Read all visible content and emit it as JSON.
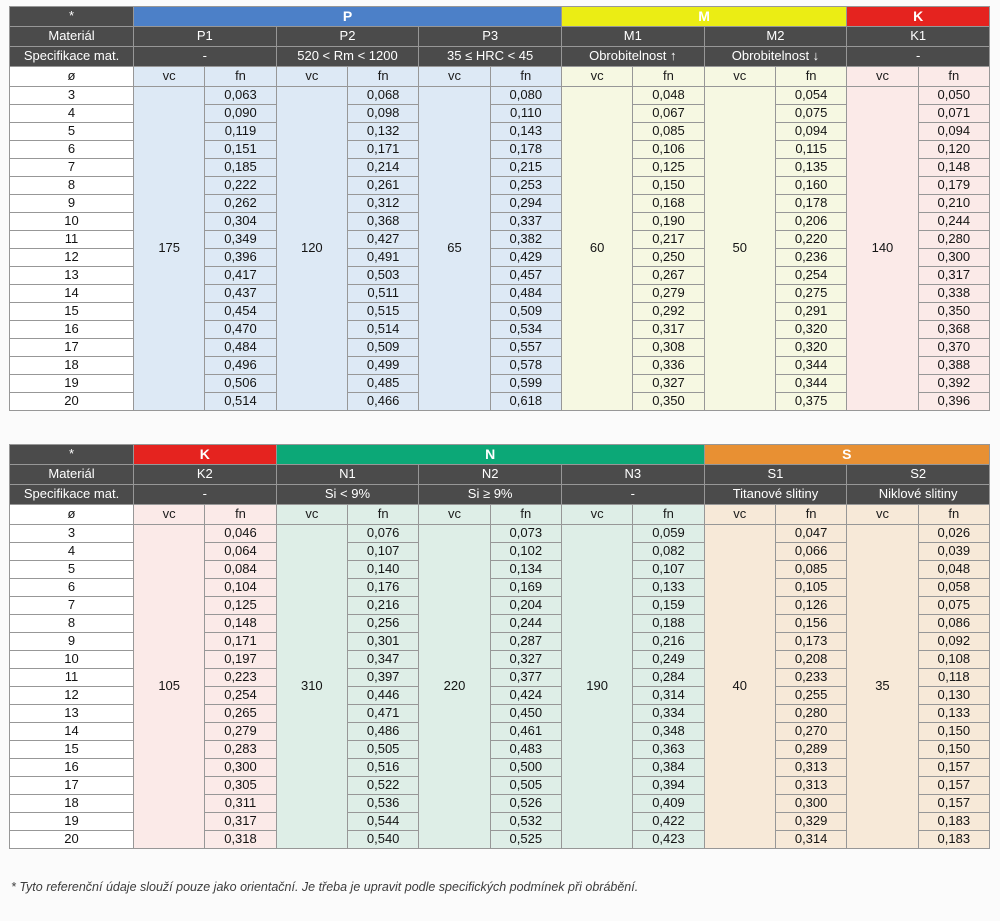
{
  "footnote": "* Tyto referenční údaje slouží pouze jako orientační. Je třeba je upravit podle specifických podmínek při obrábění.",
  "labels": {
    "corner": "*",
    "material_row": "Materiál",
    "spec_row": "Specifikace mat.",
    "diameter": "ø",
    "vc": "vc",
    "fn": "fn"
  },
  "diameters": [
    "3",
    "4",
    "5",
    "6",
    "7",
    "8",
    "9",
    "10",
    "11",
    "12",
    "13",
    "14",
    "15",
    "16",
    "17",
    "18",
    "19",
    "20"
  ],
  "colors": {
    "header_dark": "#4b4b4b",
    "header_text": "#ffffff",
    "border": "#979797",
    "iso": {
      "P": "#4c80c8",
      "M": "#ebed14",
      "K": "#e5231f",
      "N": "#0ca877",
      "S": "#e89033"
    },
    "iso_text": {
      "P": "#ffffff",
      "M": "#ffffff",
      "K": "#ffffff",
      "N": "#ffffff",
      "S": "#ffffff"
    },
    "tints": {
      "P": "#dde9f5",
      "M": "#f6f8e2",
      "K": "#fbeae8",
      "N": "#deeee7",
      "S": "#f7e9d8"
    }
  },
  "tables": [
    {
      "name": "cutting-conditions-table-pmk",
      "iso_groups": [
        {
          "code": "P",
          "materials": 3
        },
        {
          "code": "M",
          "materials": 2
        },
        {
          "code": "K",
          "materials": 1
        }
      ],
      "columns": [
        {
          "material": "P1",
          "iso": "P",
          "spec": "-",
          "vc": "175",
          "fn": [
            "0,063",
            "0,090",
            "0,119",
            "0,151",
            "0,185",
            "0,222",
            "0,262",
            "0,304",
            "0,349",
            "0,396",
            "0,417",
            "0,437",
            "0,454",
            "0,470",
            "0,484",
            "0,496",
            "0,506",
            "0,514"
          ]
        },
        {
          "material": "P2",
          "iso": "P",
          "spec": "520 < Rm < 1200",
          "vc": "120",
          "fn": [
            "0,068",
            "0,098",
            "0,132",
            "0,171",
            "0,214",
            "0,261",
            "0,312",
            "0,368",
            "0,427",
            "0,491",
            "0,503",
            "0,511",
            "0,515",
            "0,514",
            "0,509",
            "0,499",
            "0,485",
            "0,466"
          ]
        },
        {
          "material": "P3",
          "iso": "P",
          "spec": "35 ≤ HRC < 45",
          "vc": "65",
          "fn": [
            "0,080",
            "0,110",
            "0,143",
            "0,178",
            "0,215",
            "0,253",
            "0,294",
            "0,337",
            "0,382",
            "0,429",
            "0,457",
            "0,484",
            "0,509",
            "0,534",
            "0,557",
            "0,578",
            "0,599",
            "0,618"
          ]
        },
        {
          "material": "M1",
          "iso": "M",
          "spec": "Obrobitelnost ↑",
          "vc": "60",
          "fn": [
            "0,048",
            "0,067",
            "0,085",
            "0,106",
            "0,125",
            "0,150",
            "0,168",
            "0,190",
            "0,217",
            "0,250",
            "0,267",
            "0,279",
            "0,292",
            "0,317",
            "0,308",
            "0,336",
            "0,327",
            "0,350"
          ]
        },
        {
          "material": "M2",
          "iso": "M",
          "spec": "Obrobitelnost ↓",
          "vc": "50",
          "fn": [
            "0,054",
            "0,075",
            "0,094",
            "0,115",
            "0,135",
            "0,160",
            "0,178",
            "0,206",
            "0,220",
            "0,236",
            "0,254",
            "0,275",
            "0,291",
            "0,320",
            "0,320",
            "0,344",
            "0,344",
            "0,375"
          ]
        },
        {
          "material": "K1",
          "iso": "K",
          "spec": "-",
          "vc": "140",
          "fn": [
            "0,050",
            "0,071",
            "0,094",
            "0,120",
            "0,148",
            "0,179",
            "0,210",
            "0,244",
            "0,280",
            "0,300",
            "0,317",
            "0,338",
            "0,350",
            "0,368",
            "0,370",
            "0,388",
            "0,392",
            "0,396"
          ]
        }
      ]
    },
    {
      "name": "cutting-conditions-table-kns",
      "iso_groups": [
        {
          "code": "K",
          "materials": 1
        },
        {
          "code": "N",
          "materials": 3
        },
        {
          "code": "S",
          "materials": 2
        }
      ],
      "columns": [
        {
          "material": "K2",
          "iso": "K",
          "spec": "-",
          "vc": "105",
          "fn": [
            "0,046",
            "0,064",
            "0,084",
            "0,104",
            "0,125",
            "0,148",
            "0,171",
            "0,197",
            "0,223",
            "0,254",
            "0,265",
            "0,279",
            "0,283",
            "0,300",
            "0,305",
            "0,311",
            "0,317",
            "0,318"
          ]
        },
        {
          "material": "N1",
          "iso": "N",
          "spec": "Si < 9%",
          "vc": "310",
          "fn": [
            "0,076",
            "0,107",
            "0,140",
            "0,176",
            "0,216",
            "0,256",
            "0,301",
            "0,347",
            "0,397",
            "0,446",
            "0,471",
            "0,486",
            "0,505",
            "0,516",
            "0,522",
            "0,536",
            "0,544",
            "0,540"
          ]
        },
        {
          "material": "N2",
          "iso": "N",
          "spec": "Si ≥ 9%",
          "vc": "220",
          "fn": [
            "0,073",
            "0,102",
            "0,134",
            "0,169",
            "0,204",
            "0,244",
            "0,287",
            "0,327",
            "0,377",
            "0,424",
            "0,450",
            "0,461",
            "0,483",
            "0,500",
            "0,505",
            "0,526",
            "0,532",
            "0,525"
          ]
        },
        {
          "material": "N3",
          "iso": "N",
          "spec": "-",
          "vc": "190",
          "fn": [
            "0,059",
            "0,082",
            "0,107",
            "0,133",
            "0,159",
            "0,188",
            "0,216",
            "0,249",
            "0,284",
            "0,314",
            "0,334",
            "0,348",
            "0,363",
            "0,384",
            "0,394",
            "0,409",
            "0,422",
            "0,423"
          ]
        },
        {
          "material": "S1",
          "iso": "S",
          "spec": "Titanové slitiny",
          "vc": "40",
          "fn": [
            "0,047",
            "0,066",
            "0,085",
            "0,105",
            "0,126",
            "0,156",
            "0,173",
            "0,208",
            "0,233",
            "0,255",
            "0,280",
            "0,270",
            "0,289",
            "0,313",
            "0,313",
            "0,300",
            "0,329",
            "0,314"
          ]
        },
        {
          "material": "S2",
          "iso": "S",
          "spec": "Niklové slitiny",
          "vc": "35",
          "fn": [
            "0,026",
            "0,039",
            "0,048",
            "0,058",
            "0,075",
            "0,086",
            "0,092",
            "0,108",
            "0,118",
            "0,130",
            "0,133",
            "0,150",
            "0,150",
            "0,157",
            "0,157",
            "0,157",
            "0,183",
            "0,183"
          ]
        }
      ]
    }
  ]
}
